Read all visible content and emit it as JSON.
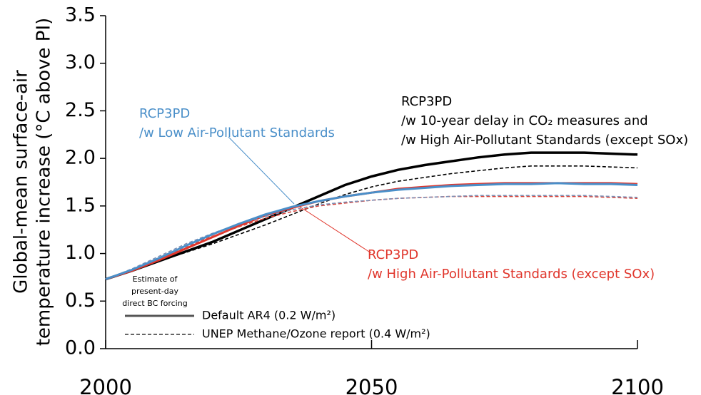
{
  "chart_data": {
    "type": "line",
    "y_label": [
      "Global-mean surface-air",
      "temperature increase (°C above PI)"
    ],
    "x": [
      2000,
      2005,
      2010,
      2015,
      2020,
      2025,
      2030,
      2035,
      2040,
      2045,
      2050,
      2055,
      2060,
      2065,
      2070,
      2075,
      2080,
      2085,
      2090,
      2095,
      2100
    ],
    "xlim": [
      2000,
      2100
    ],
    "xticks": [
      2000,
      2050,
      2100
    ],
    "ylim": [
      0,
      3.5
    ],
    "yticks": [
      {
        "value": 0,
        "label": "0.0"
      },
      0.5,
      {
        "value": 1,
        "label": "1.0"
      },
      1.5,
      {
        "value": 2,
        "label": "2.0"
      },
      2.5,
      {
        "value": 3,
        "label": "3.0"
      },
      3.5
    ],
    "series": [
      {
        "color": "#000000",
        "dash": false,
        "values": [
          0.73,
          0.82,
          0.92,
          1.02,
          1.12,
          1.24,
          1.36,
          1.48,
          1.6,
          1.72,
          1.81,
          1.88,
          1.93,
          1.97,
          2.01,
          2.04,
          2.06,
          2.06,
          2.06,
          2.05,
          2.04
        ]
      },
      {
        "color": "#000000",
        "dash": true,
        "values": [
          0.73,
          0.82,
          0.92,
          1.01,
          1.1,
          1.2,
          1.3,
          1.41,
          1.52,
          1.62,
          1.7,
          1.76,
          1.8,
          1.84,
          1.87,
          1.9,
          1.92,
          1.92,
          1.92,
          1.91,
          1.9
        ]
      },
      {
        "color": "#e0352b",
        "dash": false,
        "values": [
          0.73,
          0.82,
          0.93,
          1.05,
          1.17,
          1.29,
          1.4,
          1.48,
          1.55,
          1.6,
          1.64,
          1.68,
          1.7,
          1.72,
          1.73,
          1.74,
          1.74,
          1.74,
          1.74,
          1.74,
          1.73
        ]
      },
      {
        "color": "#d9453c",
        "dash": true,
        "values": [
          0.73,
          0.83,
          0.94,
          1.07,
          1.18,
          1.28,
          1.37,
          1.44,
          1.5,
          1.53,
          1.56,
          1.58,
          1.59,
          1.6,
          1.6,
          1.6,
          1.6,
          1.6,
          1.6,
          1.59,
          1.58
        ]
      },
      {
        "color": "#7b8fb5",
        "dash": true,
        "values": [
          0.73,
          0.84,
          0.97,
          1.1,
          1.21,
          1.31,
          1.39,
          1.46,
          1.51,
          1.54,
          1.56,
          1.58,
          1.59,
          1.6,
          1.61,
          1.61,
          1.61,
          1.61,
          1.61,
          1.6,
          1.59
        ]
      },
      {
        "color": "#4a8fc9",
        "dash": false,
        "values": [
          0.73,
          0.83,
          0.95,
          1.08,
          1.2,
          1.31,
          1.41,
          1.49,
          1.55,
          1.6,
          1.64,
          1.67,
          1.69,
          1.71,
          1.72,
          1.73,
          1.73,
          1.74,
          1.73,
          1.73,
          1.72
        ]
      }
    ],
    "annotations": [
      {
        "color": "#4a8fc9",
        "lines": [
          "RCP3PD",
          "/w Low Air-Pollutant Standards"
        ]
      },
      {
        "color": "#000000",
        "lines": [
          "RCP3PD",
          "/w 10-year delay in CO₂ measures and",
          "/w High Air-Pollutant Standards (except SOx)"
        ]
      },
      {
        "color": "#e0352b",
        "lines": [
          "RCP3PD",
          "/w High Air-Pollutant Standards (except SOx)"
        ]
      }
    ],
    "legend_title": [
      "Estimate of",
      "present-day",
      "direct BC forcing"
    ],
    "legend": [
      {
        "label": "Default AR4 (0.2 W/m²)",
        "dash": false
      },
      {
        "label": "UNEP Methane/Ozone report (0.4 W/m²)",
        "dash": true
      }
    ]
  }
}
